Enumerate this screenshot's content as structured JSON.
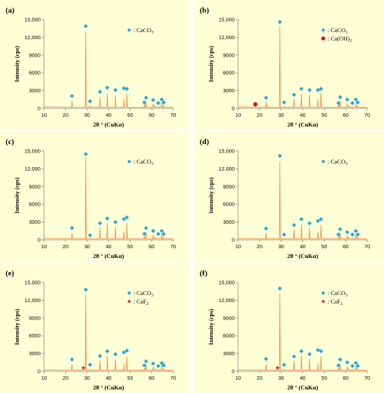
{
  "chart_data": [
    {
      "type": "line",
      "panel_label": "(a)",
      "xlabel": "2θ ° (CuKα)",
      "ylabel": "Intensity (cps)",
      "xlim": [
        10,
        70
      ],
      "ylim": [
        0,
        15000
      ],
      "x_ticks": [
        "10",
        "20",
        "30",
        "40",
        "50",
        "60",
        "70"
      ],
      "y_ticks": [
        "0",
        "3000",
        "6000",
        "9000",
        "12,000",
        "15,000"
      ],
      "legend": [
        {
          "marker": "diamond",
          "color": "#1fa8dc",
          "label": "CaCO",
          "sub": "3"
        }
      ],
      "peaks": [
        [
          23,
          1300
        ],
        [
          29.4,
          13000
        ],
        [
          31.4,
          400
        ],
        [
          36,
          1900
        ],
        [
          39.4,
          2500
        ],
        [
          43.2,
          2200
        ],
        [
          47.1,
          1500
        ],
        [
          48.5,
          2500
        ],
        [
          56.6,
          700
        ],
        [
          57.4,
          1100
        ],
        [
          60.7,
          800
        ],
        [
          61.5,
          500
        ],
        [
          63.1,
          300
        ],
        [
          64.7,
          1000
        ],
        [
          65.6,
          600
        ]
      ],
      "diamonds": [
        [
          23,
          2100
        ],
        [
          29.4,
          13900
        ],
        [
          31.4,
          1200
        ],
        [
          36,
          2800
        ],
        [
          39.4,
          3500
        ],
        [
          43.2,
          3100
        ],
        [
          47.1,
          3400
        ],
        [
          48.5,
          3300
        ],
        [
          56.6,
          1000
        ],
        [
          57.4,
          1800
        ],
        [
          60.7,
          1400
        ],
        [
          63.1,
          900
        ],
        [
          64.7,
          1500
        ],
        [
          65.6,
          1000
        ]
      ],
      "extra_markers": []
    },
    {
      "type": "line",
      "panel_label": "(b)",
      "xlabel": "2θ ° (CuKα)",
      "ylabel": "Intensity (cps)",
      "xlim": [
        10,
        70
      ],
      "ylim": [
        0,
        15000
      ],
      "x_ticks": [
        "10",
        "20",
        "30",
        "40",
        "50",
        "60",
        "70"
      ],
      "y_ticks": [
        "0",
        "3000",
        "6000",
        "9000",
        "12,000",
        "15,000"
      ],
      "legend": [
        {
          "marker": "diamond",
          "color": "#1fa8dc",
          "label": "CaCO",
          "sub": "3"
        },
        {
          "marker": "circle",
          "color": "#e8001c",
          "label": "Ca(OH)",
          "sub": "2"
        }
      ],
      "peaks": [
        [
          18,
          400
        ],
        [
          23,
          1100
        ],
        [
          29.4,
          13800
        ],
        [
          31.4,
          300
        ],
        [
          36,
          1600
        ],
        [
          39.4,
          2500
        ],
        [
          43.2,
          2300
        ],
        [
          47.1,
          1500
        ],
        [
          48.5,
          2600
        ],
        [
          56.6,
          700
        ],
        [
          57.4,
          1200
        ],
        [
          60.7,
          800
        ],
        [
          61.5,
          400
        ],
        [
          63.1,
          300
        ],
        [
          64.7,
          900
        ],
        [
          65.6,
          500
        ]
      ],
      "diamonds": [
        [
          23,
          1800
        ],
        [
          29.4,
          14600
        ],
        [
          31.4,
          1000
        ],
        [
          36,
          2300
        ],
        [
          39.4,
          3300
        ],
        [
          43.2,
          3100
        ],
        [
          47.1,
          3100
        ],
        [
          48.5,
          3300
        ],
        [
          56.6,
          900
        ],
        [
          57.4,
          1900
        ],
        [
          60.7,
          1500
        ],
        [
          63.1,
          900
        ],
        [
          64.7,
          1500
        ],
        [
          65.6,
          1000
        ]
      ],
      "extra_markers": [
        {
          "x": 18,
          "y": 700,
          "marker": "circle",
          "color": "#e8001c"
        }
      ]
    },
    {
      "type": "line",
      "panel_label": "(c)",
      "xlabel": "2θ ° (CuKα)",
      "ylabel": "Intensity (cps)",
      "xlim": [
        10,
        70
      ],
      "ylim": [
        0,
        15000
      ],
      "x_ticks": [
        "10",
        "20",
        "30",
        "40",
        "50",
        "60",
        "70"
      ],
      "y_ticks": [
        "0",
        "3000",
        "6000",
        "9000",
        "12,000",
        "15,000"
      ],
      "legend": [
        {
          "marker": "diamond",
          "color": "#1fa8dc",
          "label": "CaCO",
          "sub": "3"
        }
      ],
      "peaks": [
        [
          23,
          1200
        ],
        [
          29.4,
          14000
        ],
        [
          31.4,
          300
        ],
        [
          36,
          2000
        ],
        [
          39.4,
          2800
        ],
        [
          43.2,
          2200
        ],
        [
          47.1,
          1400
        ],
        [
          48.5,
          2800
        ],
        [
          56.6,
          600
        ],
        [
          57.4,
          1300
        ],
        [
          60.7,
          900
        ],
        [
          61.5,
          500
        ],
        [
          63.1,
          300
        ],
        [
          64.7,
          1000
        ],
        [
          65.6,
          500
        ]
      ],
      "diamonds": [
        [
          23,
          2000
        ],
        [
          29.4,
          14500
        ],
        [
          31.4,
          800
        ],
        [
          36,
          2800
        ],
        [
          39.4,
          3600
        ],
        [
          43.2,
          3000
        ],
        [
          47.1,
          3500
        ],
        [
          48.5,
          3800
        ],
        [
          56.6,
          1000
        ],
        [
          57.4,
          2000
        ],
        [
          60.7,
          1500
        ],
        [
          63.1,
          1000
        ],
        [
          64.7,
          1500
        ],
        [
          65.6,
          1000
        ]
      ],
      "extra_markers": []
    },
    {
      "type": "line",
      "panel_label": "(d)",
      "xlabel": "2θ ° (CuKα)",
      "ylabel": "Intensity (cps)",
      "xlim": [
        10,
        70
      ],
      "ylim": [
        0,
        15000
      ],
      "x_ticks": [
        "10",
        "20",
        "30",
        "40",
        "50",
        "60",
        "70"
      ],
      "y_ticks": [
        "0",
        "3000",
        "6000",
        "9000",
        "12,000",
        "15,000"
      ],
      "legend": [
        {
          "marker": "diamond",
          "color": "#1fa8dc",
          "label": "CaCO",
          "sub": "3"
        }
      ],
      "peaks": [
        [
          23,
          1200
        ],
        [
          29.4,
          13200
        ],
        [
          31.4,
          300
        ],
        [
          36,
          1800
        ],
        [
          39.4,
          2600
        ],
        [
          43.2,
          2000
        ],
        [
          47.1,
          1400
        ],
        [
          48.5,
          2500
        ],
        [
          56.6,
          600
        ],
        [
          57.4,
          1200
        ],
        [
          60.7,
          800
        ],
        [
          61.5,
          400
        ],
        [
          63.1,
          300
        ],
        [
          64.7,
          900
        ],
        [
          65.6,
          500
        ]
      ],
      "diamonds": [
        [
          23,
          1900
        ],
        [
          29.4,
          14200
        ],
        [
          31.4,
          900
        ],
        [
          36,
          2500
        ],
        [
          39.4,
          3500
        ],
        [
          43.2,
          2800
        ],
        [
          47.1,
          3200
        ],
        [
          48.5,
          3500
        ],
        [
          56.6,
          900
        ],
        [
          57.4,
          1800
        ],
        [
          60.7,
          1300
        ],
        [
          63.1,
          900
        ],
        [
          64.7,
          1500
        ],
        [
          65.6,
          900
        ]
      ],
      "extra_markers": []
    },
    {
      "type": "line",
      "panel_label": "(e)",
      "xlabel": "2θ ° (CuKα)",
      "ylabel": "Intensity (cps)",
      "xlim": [
        10,
        70
      ],
      "ylim": [
        0,
        15000
      ],
      "x_ticks": [
        "10",
        "20",
        "30",
        "40",
        "50",
        "60",
        "70"
      ],
      "y_ticks": [
        "0",
        "3000",
        "6000",
        "9000",
        "12,000",
        "15,000"
      ],
      "legend": [
        {
          "marker": "diamond",
          "color": "#1fa8dc",
          "label": "CaCO",
          "sub": "3"
        },
        {
          "marker": "star",
          "color": "#e8001c",
          "label": "CaF",
          "sub": "2"
        }
      ],
      "peaks": [
        [
          23,
          1200
        ],
        [
          28.3,
          300
        ],
        [
          29.4,
          13000
        ],
        [
          31.4,
          300
        ],
        [
          36,
          1800
        ],
        [
          39.4,
          2600
        ],
        [
          43.2,
          2000
        ],
        [
          47.1,
          1300
        ],
        [
          48.5,
          2500
        ],
        [
          56.6,
          600
        ],
        [
          57.4,
          1100
        ],
        [
          60.7,
          800
        ],
        [
          61.5,
          400
        ],
        [
          63.1,
          300
        ],
        [
          64.7,
          900
        ],
        [
          65.6,
          500
        ]
      ],
      "diamonds": [
        [
          23,
          2000
        ],
        [
          29.4,
          13800
        ],
        [
          31.4,
          1100
        ],
        [
          36,
          2600
        ],
        [
          39.4,
          3400
        ],
        [
          43.2,
          2900
        ],
        [
          47.1,
          3200
        ],
        [
          48.5,
          3500
        ],
        [
          56.6,
          1000
        ],
        [
          57.4,
          1700
        ],
        [
          60.7,
          1300
        ],
        [
          63.1,
          900
        ],
        [
          64.7,
          1400
        ],
        [
          65.6,
          1000
        ]
      ],
      "extra_markers": [
        {
          "x": 28.3,
          "y": 600,
          "marker": "star",
          "color": "#e8001c"
        }
      ]
    },
    {
      "type": "line",
      "panel_label": "(f)",
      "xlabel": "2θ ° (CuKα)",
      "ylabel": "Intensity (cps)",
      "xlim": [
        10,
        70
      ],
      "ylim": [
        0,
        15000
      ],
      "x_ticks": [
        "10",
        "20",
        "30",
        "40",
        "50",
        "60",
        "70"
      ],
      "y_ticks": [
        "0",
        "3000",
        "6000",
        "9000",
        "12,000",
        "15,000"
      ],
      "legend": [
        {
          "marker": "diamond",
          "color": "#1fa8dc",
          "label": "CaCO",
          "sub": "3"
        },
        {
          "marker": "star",
          "color": "#e8001c",
          "label": "CaF",
          "sub": "2"
        }
      ],
      "peaks": [
        [
          23,
          1200
        ],
        [
          28.3,
          300
        ],
        [
          29.4,
          13200
        ],
        [
          31.4,
          300
        ],
        [
          36,
          1800
        ],
        [
          39.4,
          2700
        ],
        [
          43.2,
          2100
        ],
        [
          47.1,
          1300
        ],
        [
          48.5,
          2500
        ],
        [
          56.6,
          600
        ],
        [
          57.4,
          1200
        ],
        [
          60.7,
          800
        ],
        [
          61.5,
          400
        ],
        [
          63.1,
          300
        ],
        [
          64.7,
          900
        ],
        [
          65.6,
          500
        ]
      ],
      "diamonds": [
        [
          23,
          2100
        ],
        [
          29.4,
          14000
        ],
        [
          31.4,
          1100
        ],
        [
          36,
          2500
        ],
        [
          39.4,
          3400
        ],
        [
          43.2,
          2900
        ],
        [
          47.1,
          3600
        ],
        [
          48.5,
          3400
        ],
        [
          56.6,
          1000
        ],
        [
          57.4,
          2000
        ],
        [
          60.7,
          1500
        ],
        [
          63.1,
          900
        ],
        [
          64.7,
          1400
        ],
        [
          65.6,
          900
        ]
      ],
      "extra_markers": [
        {
          "x": 28.3,
          "y": 600,
          "marker": "star",
          "color": "#e8001c"
        }
      ]
    }
  ],
  "style": {
    "panel_bg": "#ffffd6",
    "line_color": "#f08a4b",
    "axis_color": "#808080"
  }
}
